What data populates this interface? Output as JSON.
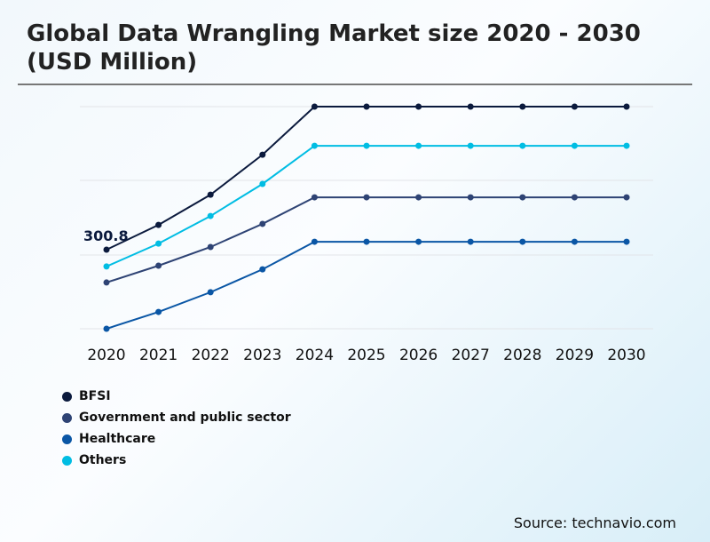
{
  "title": "Global Data Wrangling Market size 2020 - 2030 (USD Million)",
  "source": "Source: technavio.com",
  "chart_data": {
    "type": "line",
    "title": "Global Data Wrangling Market size 2020 - 2030 (USD Million)",
    "categories": [
      "2020",
      "2021",
      "2022",
      "2023",
      "2024",
      "2025",
      "2026",
      "2027",
      "2028",
      "2029",
      "2030"
    ],
    "ylim": [
      0,
      845
    ],
    "grid": true,
    "legend": "bottom-left",
    "annotation": "300.8",
    "series": [
      {
        "name": "BFSI",
        "color": "#0b1a3d",
        "values": [
          300.8,
          395,
          510,
          662,
          845,
          845,
          845,
          845,
          845,
          845,
          845
        ]
      },
      {
        "name": "Government and public sector",
        "color": "#2e4374",
        "values": [
          176,
          240,
          311,
          399,
          500,
          500,
          500,
          500,
          500,
          500,
          500
        ]
      },
      {
        "name": "Healthcare",
        "color": "#0a56a5",
        "values": [
          0,
          64,
          139,
          226,
          331,
          331,
          331,
          331,
          331,
          331,
          331
        ]
      },
      {
        "name": "Others",
        "color": "#00bde3",
        "values": [
          237,
          324,
          429,
          551,
          696,
          696,
          696,
          696,
          696,
          696,
          696
        ]
      }
    ]
  }
}
